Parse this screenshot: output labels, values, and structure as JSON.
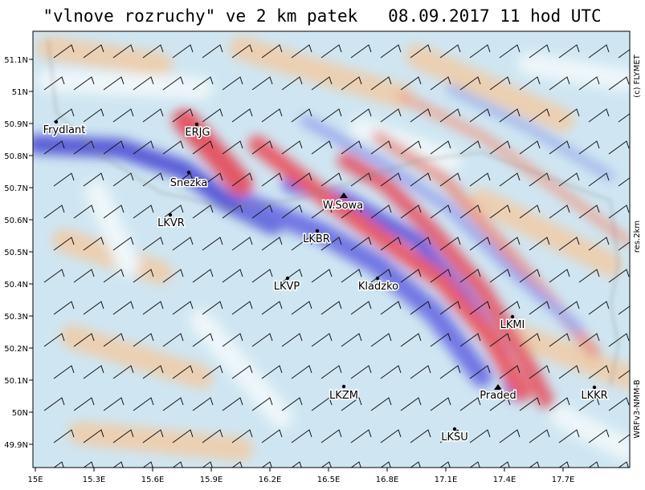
{
  "header": {
    "title": "\"vlnove rozruchy\" ve 2 km patek   08.09.2017 11 hod UTC"
  },
  "map": {
    "lon_ticks": [
      "15E",
      "15.3E",
      "15.6E",
      "15.9E",
      "16.2E",
      "16.5E",
      "16.8E",
      "17.1E",
      "17.4E",
      "17.7E"
    ],
    "lat_ticks": [
      "51.1N",
      "51N",
      "50.9N",
      "50.8N",
      "50.7N",
      "50.6N",
      "50.5N",
      "50.4N",
      "50.3N",
      "50.2N",
      "50.1N",
      "50N",
      "49.9N"
    ],
    "stations": [
      "Frydlant",
      "ERJG",
      "Snezka",
      "LKVR",
      "W.Sowa",
      "LKBR",
      "LKVP",
      "Kladzko",
      "LKMI",
      "LKZM",
      "Praded",
      "LKKR",
      "LKSU"
    ],
    "side_labels": [
      "(c) FLYMET",
      "res.2km",
      "WRFv3-NMM-B"
    ]
  }
}
